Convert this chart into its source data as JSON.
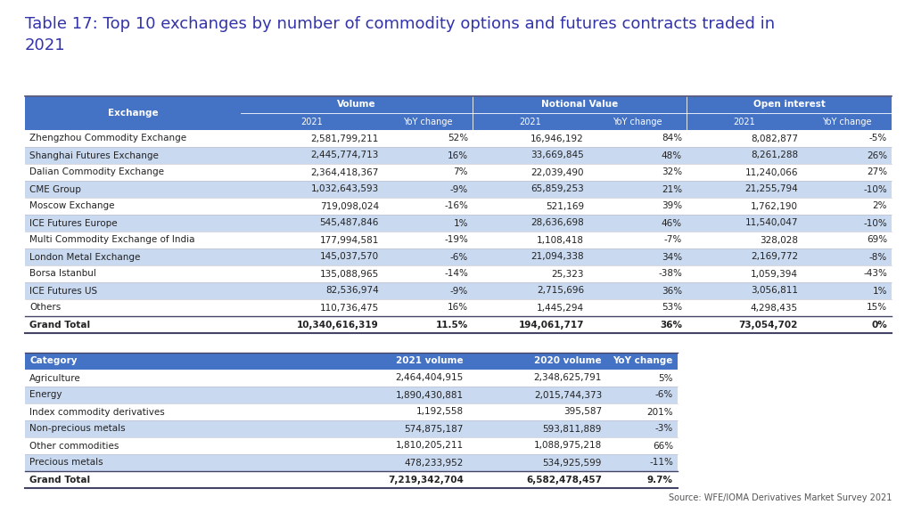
{
  "title": "Table 17: Top 10 exchanges by number of commodity options and futures contracts traded in\n2021",
  "title_fontsize": 13,
  "title_color": "#3333aa",
  "background_color": "#ffffff",
  "header_bg": "#4472c4",
  "header_text_color": "#ffffff",
  "alt_row_color": "#c9d9f0",
  "normal_row_color": "#ffffff",
  "source_text": "Source: WFE/IOMA Derivatives Market Survey 2021",
  "table1_rows": [
    [
      "Zhengzhou Commodity Exchange",
      "2,581,799,211",
      "52%",
      "16,946,192",
      "84%",
      "8,082,877",
      "-5%"
    ],
    [
      "Shanghai Futures Exchange",
      "2,445,774,713",
      "16%",
      "33,669,845",
      "48%",
      "8,261,288",
      "26%"
    ],
    [
      "Dalian Commodity Exchange",
      "2,364,418,367",
      "7%",
      "22,039,490",
      "32%",
      "11,240,066",
      "27%"
    ],
    [
      "CME Group",
      "1,032,643,593",
      "-9%",
      "65,859,253",
      "21%",
      "21,255,794",
      "-10%"
    ],
    [
      "Moscow Exchange",
      "719,098,024",
      "-16%",
      "521,169",
      "39%",
      "1,762,190",
      "2%"
    ],
    [
      "ICE Futures Europe",
      "545,487,846",
      "1%",
      "28,636,698",
      "46%",
      "11,540,047",
      "-10%"
    ],
    [
      "Multi Commodity Exchange of India",
      "177,994,581",
      "-19%",
      "1,108,418",
      "-7%",
      "328,028",
      "69%"
    ],
    [
      "London Metal Exchange",
      "145,037,570",
      "-6%",
      "21,094,338",
      "34%",
      "2,169,772",
      "-8%"
    ],
    [
      "Borsa Istanbul",
      "135,088,965",
      "-14%",
      "25,323",
      "-38%",
      "1,059,394",
      "-43%"
    ],
    [
      "ICE Futures US",
      "82,536,974",
      "-9%",
      "2,715,696",
      "36%",
      "3,056,811",
      "1%"
    ],
    [
      "Others",
      "110,736,475",
      "16%",
      "1,445,294",
      "53%",
      "4,298,435",
      "15%"
    ]
  ],
  "table1_total": [
    "Grand Total",
    "10,340,616,319",
    "11.5%",
    "194,061,717",
    "36%",
    "73,054,702",
    "0%"
  ],
  "table1_alt_rows": [
    1,
    3,
    5,
    7,
    9
  ],
  "table2_headers": [
    "Category",
    "2021 volume",
    "2020 volume",
    "YoY change"
  ],
  "table2_rows": [
    [
      "Agriculture",
      "2,464,404,915",
      "2,348,625,791",
      "5%"
    ],
    [
      "Energy",
      "1,890,430,881",
      "2,015,744,373",
      "-6%"
    ],
    [
      "Index commodity derivatives",
      "1,192,558",
      "395,587",
      "201%"
    ],
    [
      "Non-precious metals",
      "574,875,187",
      "593,811,889",
      "-3%"
    ],
    [
      "Other commodities",
      "1,810,205,211",
      "1,088,975,218",
      "66%"
    ],
    [
      "Precious metals",
      "478,233,952",
      "534,925,599",
      "-11%"
    ]
  ],
  "table2_total": [
    "Grand Total",
    "7,219,342,704",
    "6,582,478,457",
    "9.7%"
  ],
  "table2_alt_rows": [
    1,
    3,
    5
  ]
}
